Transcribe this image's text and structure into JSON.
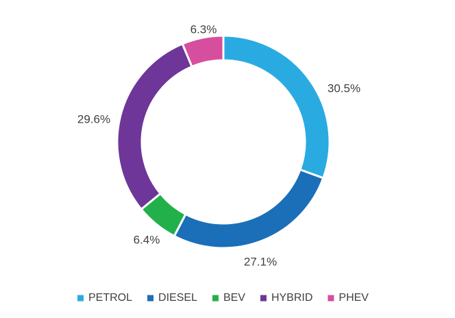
{
  "chart_data": {
    "type": "pie",
    "variant": "donut",
    "title": "",
    "categories": [
      "PETROL",
      "DIESEL",
      "BEV",
      "HYBRID",
      "PHEV"
    ],
    "values": [
      30.5,
      27.1,
      6.4,
      29.6,
      6.3
    ],
    "labels": [
      "30.5%",
      "27.1%",
      "6.4%",
      "29.6%",
      "6.3%"
    ],
    "colors": [
      "#29abe2",
      "#1a6fb8",
      "#22b04a",
      "#6e3698",
      "#d64f9e"
    ],
    "legend": {
      "position": "bottom",
      "entries": [
        "PETROL",
        "DIESEL",
        "BEV",
        "HYBRID",
        "PHEV"
      ]
    }
  }
}
